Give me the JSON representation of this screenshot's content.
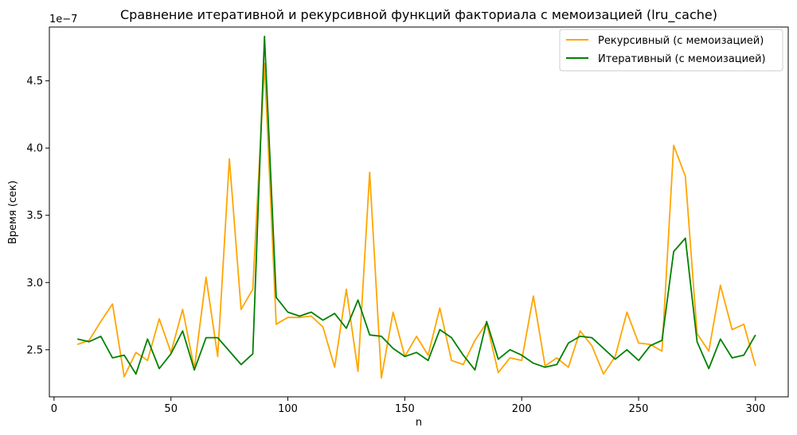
{
  "chart_data": {
    "type": "line",
    "title": "Сравнение итеративной и рекурсивной функций факториала с мемоизацией (lru_cache)",
    "xlabel": "n",
    "ylabel": "Время (сек)",
    "y_offset_label": "1e−7",
    "xlim": [
      -2,
      314
    ],
    "ylim": [
      2.15,
      4.9
    ],
    "xticks": [
      0,
      50,
      100,
      150,
      200,
      250,
      300
    ],
    "yticks": [
      2.5,
      3.0,
      3.5,
      4.0,
      4.5
    ],
    "ytick_labels": [
      "2.5",
      "3.0",
      "3.5",
      "4.0",
      "4.5"
    ],
    "grid": false,
    "legend_position": "top-right",
    "x": [
      10,
      15,
      20,
      25,
      30,
      35,
      40,
      45,
      50,
      55,
      60,
      65,
      70,
      75,
      80,
      85,
      90,
      95,
      100,
      105,
      110,
      115,
      120,
      125,
      130,
      135,
      140,
      145,
      150,
      155,
      160,
      165,
      170,
      175,
      180,
      185,
      190,
      195,
      200,
      205,
      210,
      215,
      220,
      225,
      230,
      235,
      240,
      245,
      250,
      255,
      260,
      265,
      270,
      275,
      280,
      285,
      290,
      295,
      300
    ],
    "series": [
      {
        "name": "Рекурсивный (с мемоизацией)",
        "color": "#ffa500",
        "values": [
          2.54,
          2.57,
          2.71,
          2.84,
          2.3,
          2.48,
          2.42,
          2.73,
          2.48,
          2.8,
          2.36,
          3.04,
          2.45,
          3.92,
          2.8,
          2.95,
          4.63,
          2.69,
          2.74,
          2.74,
          2.75,
          2.67,
          2.37,
          2.95,
          2.34,
          3.82,
          2.29,
          2.78,
          2.45,
          2.6,
          2.46,
          2.81,
          2.42,
          2.39,
          2.57,
          2.7,
          2.33,
          2.44,
          2.42,
          2.9,
          2.38,
          2.44,
          2.37,
          2.64,
          2.53,
          2.32,
          2.45,
          2.78,
          2.55,
          2.54,
          2.49,
          4.02,
          3.79,
          2.62,
          2.49,
          2.98,
          2.65,
          2.69,
          2.38
        ]
      },
      {
        "name": "Итеративный (с мемоизацией)",
        "color": "#008000",
        "values": [
          2.58,
          2.56,
          2.6,
          2.44,
          2.46,
          2.32,
          2.58,
          2.36,
          2.47,
          2.64,
          2.35,
          2.59,
          2.59,
          2.49,
          2.39,
          2.47,
          4.83,
          2.89,
          2.78,
          2.75,
          2.78,
          2.72,
          2.77,
          2.66,
          2.87,
          2.61,
          2.6,
          2.51,
          2.45,
          2.48,
          2.42,
          2.65,
          2.59,
          2.46,
          2.35,
          2.71,
          2.43,
          2.5,
          2.46,
          2.4,
          2.37,
          2.39,
          2.55,
          2.6,
          2.59,
          2.51,
          2.43,
          2.5,
          2.42,
          2.53,
          2.57,
          3.23,
          3.33,
          2.56,
          2.36,
          2.58,
          2.44,
          2.46,
          2.61
        ]
      }
    ]
  }
}
